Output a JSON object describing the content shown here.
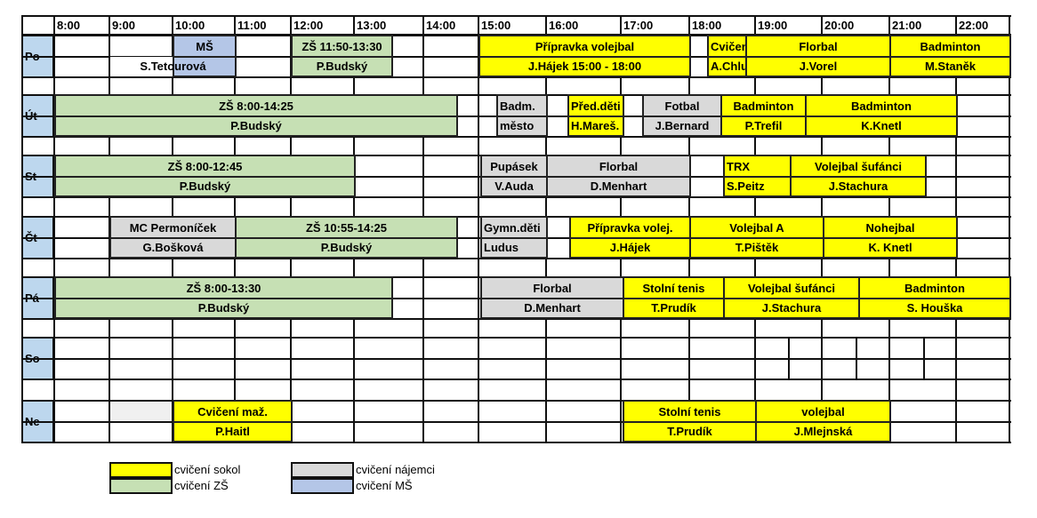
{
  "header": {
    "hours": [
      "8:00",
      "9:00",
      "10:00",
      "11:00",
      "12:00",
      "13:00",
      "14:00",
      "15:00",
      "16:00",
      "17:00",
      "18:00",
      "19:00",
      "20:00",
      "21:00",
      "22:00"
    ]
  },
  "days": [
    "Po",
    "Út",
    "St",
    "Čt",
    "Pá",
    "So",
    "Ne"
  ],
  "colors": {
    "sokol": "#ffff00",
    "zs": "#c6e0b4",
    "najemci": "#d9d9d9",
    "ms": "#b4c6e7",
    "day": "#bdd7ee"
  },
  "events": [
    {
      "day": "Po",
      "title": "MŠ",
      "person": "S.Tetourová",
      "category": "ms"
    },
    {
      "day": "Po",
      "title": "ZŠ 11:50-13:30",
      "person": "P.Budský",
      "category": "zs"
    },
    {
      "day": "Po",
      "title": "Přípravka volejbal",
      "person": "J.Hájek 15:00 - 18:00",
      "category": "sokol"
    },
    {
      "day": "Po",
      "title": "Cvičení ž.",
      "person": "A.Chlum.",
      "category": "sokol"
    },
    {
      "day": "Po",
      "title": "Florbal",
      "person": "J.Vorel",
      "category": "sokol"
    },
    {
      "day": "Po",
      "title": "Badminton",
      "person": "M.Staněk",
      "category": "sokol"
    },
    {
      "day": "Út",
      "title": "ZŠ 8:00-14:25",
      "person": "P.Budský",
      "category": "zs"
    },
    {
      "day": "Út",
      "title": "Badm.",
      "person": "město",
      "category": "najemci"
    },
    {
      "day": "Út",
      "title": "Před.děti",
      "person": "H.Mareš.",
      "category": "sokol"
    },
    {
      "day": "Út",
      "title": "Fotbal",
      "person": "J.Bernard",
      "category": "najemci"
    },
    {
      "day": "Út",
      "title": "Badminton",
      "person": "P.Trefil",
      "category": "sokol"
    },
    {
      "day": "Út",
      "title": "Badminton",
      "person": "K.Knetl",
      "category": "sokol"
    },
    {
      "day": "St",
      "title": "ZŠ 8:00-12:45",
      "person": "P.Budský",
      "category": "zs"
    },
    {
      "day": "St",
      "title": "Pupásek",
      "person": "V.Auda",
      "category": "najemci"
    },
    {
      "day": "St",
      "title": "Florbal",
      "person": "D.Menhart",
      "category": "najemci"
    },
    {
      "day": "St",
      "title": "TRX",
      "person": "S.Peitz",
      "category": "sokol"
    },
    {
      "day": "St",
      "title": "Volejbal šufánci",
      "person": "J.Stachura",
      "category": "sokol"
    },
    {
      "day": "Čt",
      "title": "MC Permoníček",
      "person": "G.Bošková",
      "category": "najemci"
    },
    {
      "day": "Čt",
      "title": "ZŠ 10:55-14:25",
      "person": "P.Budský",
      "category": "zs"
    },
    {
      "day": "Čt",
      "title": "Gymn.děti",
      "person": "Ludus",
      "category": "najemci"
    },
    {
      "day": "Čt",
      "title": "Přípravka volej.",
      "person": "J.Hájek",
      "category": "sokol"
    },
    {
      "day": "Čt",
      "title": "Volejbal A",
      "person": "T.Pištěk",
      "category": "sokol"
    },
    {
      "day": "Čt",
      "title": "Nohejbal",
      "person": "K. Knetl",
      "category": "sokol"
    },
    {
      "day": "Pá",
      "title": "ZŠ 8:00-13:30",
      "person": "P.Budský",
      "category": "zs"
    },
    {
      "day": "Pá",
      "title": "Florbal",
      "person": "D.Menhart",
      "category": "najemci"
    },
    {
      "day": "Pá",
      "title": "Stolní tenis",
      "person": "T.Prudík",
      "category": "sokol"
    },
    {
      "day": "Pá",
      "title": "Volejbal šufánci",
      "person": "J.Stachura",
      "category": "sokol"
    },
    {
      "day": "Pá",
      "title": "Badminton",
      "person": "S. Houška",
      "category": "sokol"
    },
    {
      "day": "Ne",
      "title": "Cvičení maž.",
      "person": "P.Haitl",
      "category": "sokol"
    },
    {
      "day": "Ne",
      "title": "Stolní tenis",
      "person": "T.Prudík",
      "category": "sokol"
    },
    {
      "day": "Ne",
      "title": "volejbal",
      "person": "J.Mlejnská",
      "category": "sokol"
    }
  ],
  "legend": [
    {
      "label": "cvičení sokol",
      "category": "sokol"
    },
    {
      "label": "cvičení ZŠ",
      "category": "zs"
    },
    {
      "label": "cvičení nájemci",
      "category": "najemci"
    },
    {
      "label": "cvičení MŠ",
      "category": "ms"
    }
  ]
}
